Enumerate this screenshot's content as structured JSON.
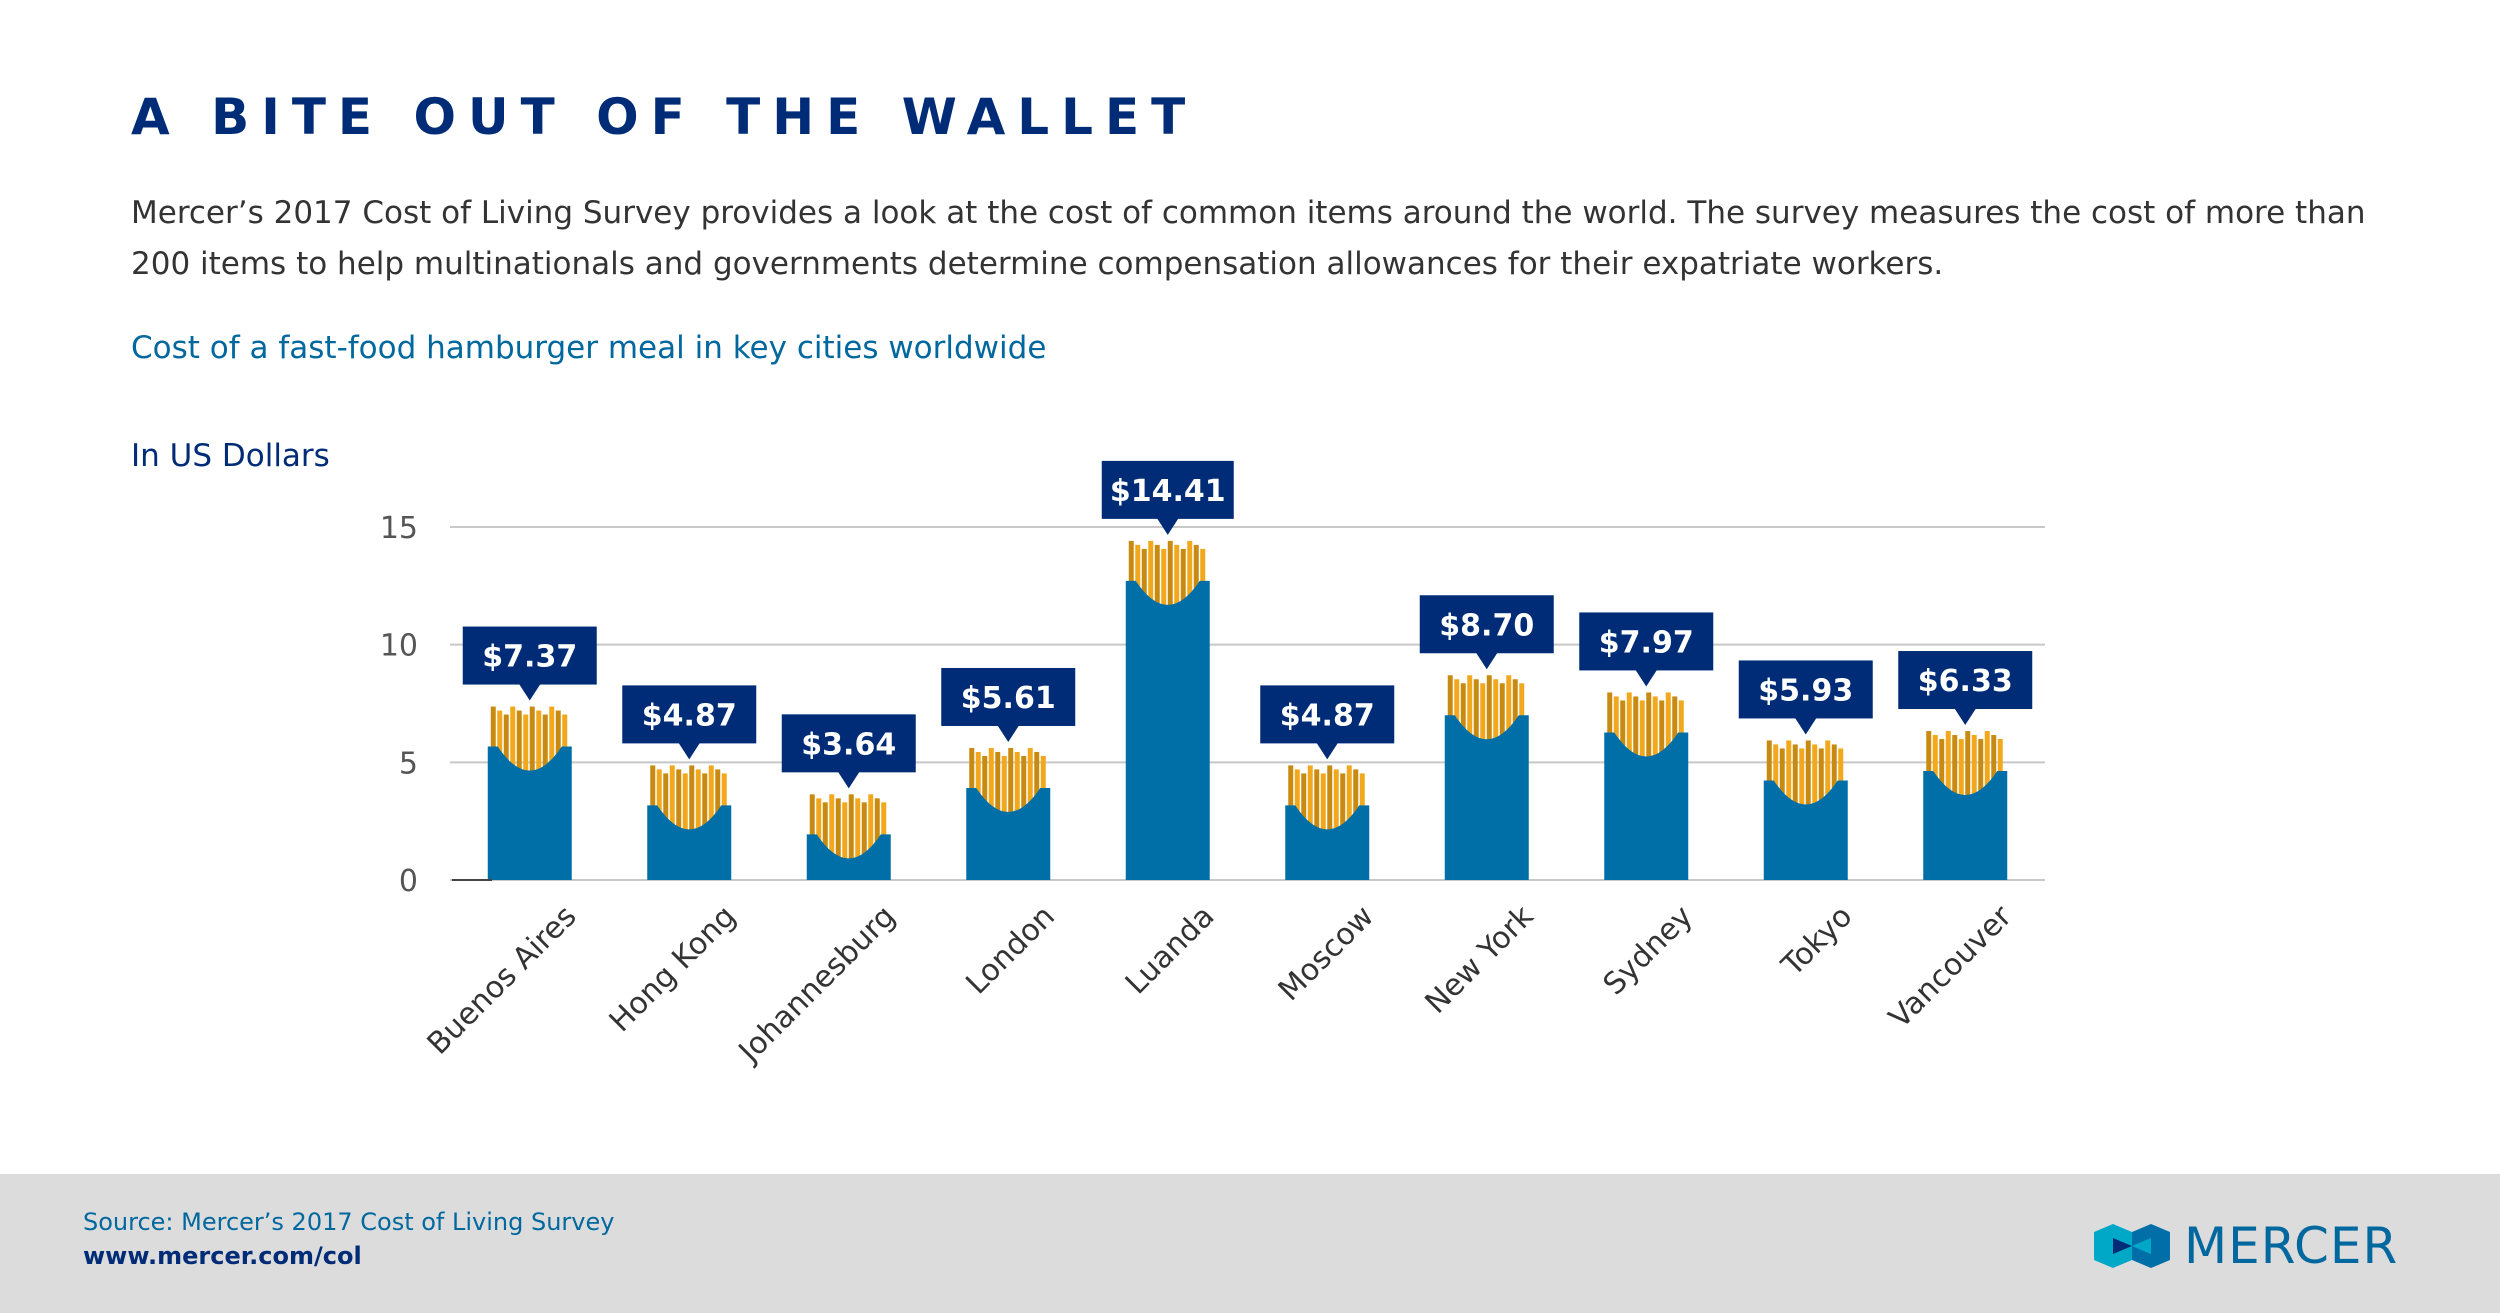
{
  "header": {
    "title": "A BITE OUT OF THE WALLET",
    "intro": "Mercer’s 2017 Cost of Living Survey provides a look at the cost of common items around the world. The survey measures the cost of more than 200 items to help multinationals and governments determine compensation allowances for their expatriate workers.",
    "subtitle": "Cost of a fast-food hamburger meal in key cities worldwide",
    "unit_label": "In US Dollars"
  },
  "chart_data": {
    "type": "bar",
    "title": "Cost of a fast-food hamburger meal in key cities worldwide",
    "ylabel": "In US Dollars",
    "xlabel": "",
    "categories": [
      "Buenos Aires",
      "Hong Kong",
      "Johannesburg",
      "London",
      "Luanda",
      "Moscow",
      "New York",
      "Sydney",
      "Tokyo",
      "Vancouver"
    ],
    "values": [
      7.37,
      4.87,
      3.64,
      5.61,
      14.41,
      4.87,
      8.7,
      7.97,
      5.93,
      6.33
    ],
    "data_labels": [
      "$7.37",
      "$4.87",
      "$3.64",
      "$5.61",
      "$14.41",
      "$4.87",
      "$8.70",
      "$7.97",
      "$5.93",
      "$6.33"
    ],
    "yticks": [
      0,
      5,
      10,
      15
    ],
    "ylim": [
      0,
      15
    ],
    "grid": true,
    "colors": {
      "bar": "#006fa8",
      "label_box": "#002c77",
      "label_text": "#ffffff",
      "fries": "#f2a81d",
      "fries_dark": "#c98a12",
      "grid": "#c8c8c8",
      "tick_text": "#555555"
    }
  },
  "footer": {
    "source": "Source: Mercer’s 2017 Cost of Living Survey",
    "url": "www.mercer.com/col",
    "brand": "MERCER",
    "logo_icon": "mercer-logo-icon"
  }
}
